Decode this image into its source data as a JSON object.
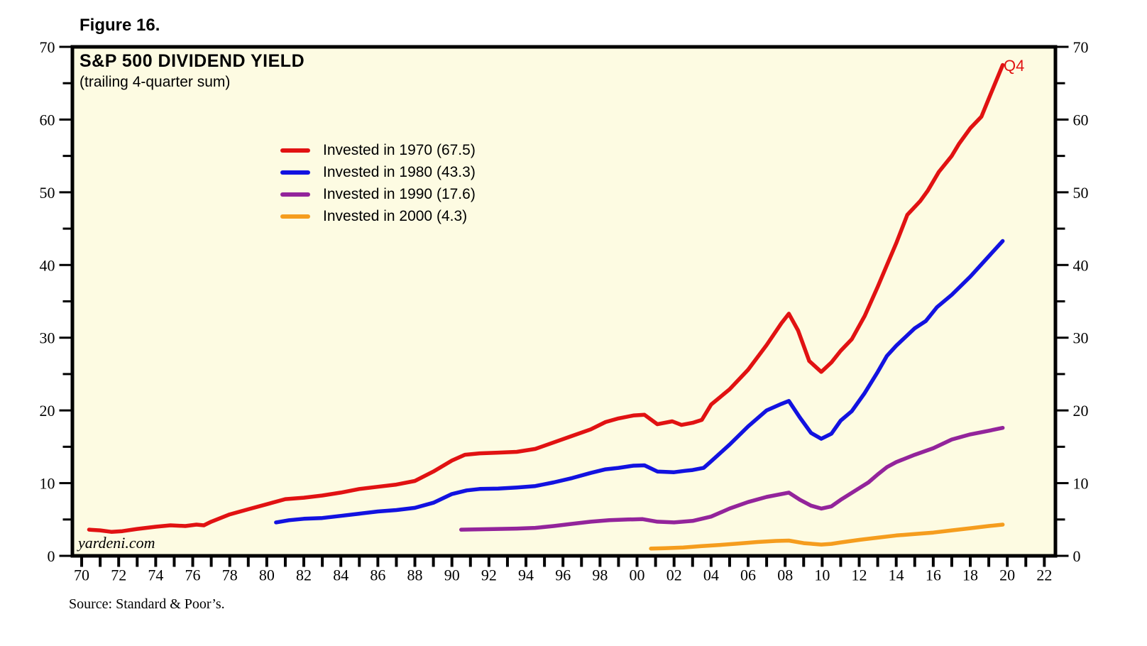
{
  "figure_label": "Figure 16.",
  "header": {
    "title": "S&P 500 DIVIDEND YIELD",
    "subtitle": "(trailing 4-quarter sum)"
  },
  "annotations": {
    "end_point_label": "Q4",
    "watermark": "yardeni.com",
    "source": "Source: Standard & Poor’s."
  },
  "colors": {
    "plot_background": "#fdfbe2",
    "frame": "#000000",
    "red": "#e11212",
    "blue": "#1212e0",
    "purple": "#93249b",
    "orange": "#f59d1e"
  },
  "chart_data": {
    "type": "line",
    "title": "S&P 500 DIVIDEND YIELD (trailing 4-quarter sum)",
    "xlabel": "",
    "ylabel": "",
    "grid": false,
    "legend_position": "upper-left-inside",
    "x_axis": {
      "min": 1969.5,
      "max": 2022.6,
      "tick_start": 1970,
      "tick_step": 1,
      "tick_end": 2022,
      "label_start": 1970,
      "label_step": 2,
      "tick_labels": [
        "70",
        "72",
        "74",
        "76",
        "78",
        "80",
        "82",
        "84",
        "86",
        "88",
        "90",
        "92",
        "94",
        "96",
        "98",
        "00",
        "02",
        "04",
        "06",
        "08",
        "10",
        "12",
        "14",
        "16",
        "18",
        "20",
        "22"
      ]
    },
    "y_axis": {
      "min": 0,
      "max": 70,
      "major_step": 10,
      "minor_step": 5,
      "tick_labels": [
        "0",
        "10",
        "20",
        "30",
        "40",
        "50",
        "60",
        "70"
      ],
      "sides": [
        "left",
        "right"
      ]
    },
    "legend": [
      {
        "label": "Invested in 1970 (67.5)",
        "color": "#e11212"
      },
      {
        "label": "Invested in 1980 (43.3)",
        "color": "#1212e0"
      },
      {
        "label": "Invested in 1990 (17.6)",
        "color": "#93249b"
      },
      {
        "label": "Invested in 2000 (4.3)",
        "color": "#f59d1e"
      }
    ],
    "series": [
      {
        "name": "Invested in 1970",
        "final_value": 67.5,
        "color": "#e11212",
        "points": [
          [
            1970.4,
            3.6
          ],
          [
            1971,
            3.5
          ],
          [
            1971.6,
            3.3
          ],
          [
            1972.2,
            3.4
          ],
          [
            1973,
            3.7
          ],
          [
            1974,
            4.0
          ],
          [
            1974.8,
            4.2
          ],
          [
            1975.6,
            4.1
          ],
          [
            1976.2,
            4.3
          ],
          [
            1976.6,
            4.2
          ],
          [
            1977,
            4.7
          ],
          [
            1978,
            5.7
          ],
          [
            1979,
            6.4
          ],
          [
            1980,
            7.1
          ],
          [
            1981,
            7.8
          ],
          [
            1982,
            8.0
          ],
          [
            1983,
            8.3
          ],
          [
            1984,
            8.7
          ],
          [
            1985,
            9.2
          ],
          [
            1986,
            9.5
          ],
          [
            1987,
            9.8
          ],
          [
            1988,
            10.3
          ],
          [
            1989,
            11.6
          ],
          [
            1990,
            13.1
          ],
          [
            1990.7,
            13.9
          ],
          [
            1991.5,
            14.1
          ],
          [
            1992.5,
            14.2
          ],
          [
            1993.5,
            14.3
          ],
          [
            1994.5,
            14.7
          ],
          [
            1995.5,
            15.6
          ],
          [
            1996.5,
            16.5
          ],
          [
            1997.5,
            17.4
          ],
          [
            1998.3,
            18.4
          ],
          [
            1999,
            18.9
          ],
          [
            1999.8,
            19.3
          ],
          [
            2000.4,
            19.4
          ],
          [
            2001.1,
            18.1
          ],
          [
            2001.9,
            18.5
          ],
          [
            2002.4,
            18.0
          ],
          [
            2003,
            18.3
          ],
          [
            2003.5,
            18.7
          ],
          [
            2004,
            20.8
          ],
          [
            2005,
            22.9
          ],
          [
            2006,
            25.6
          ],
          [
            2007,
            29.0
          ],
          [
            2007.8,
            32.0
          ],
          [
            2008.2,
            33.3
          ],
          [
            2008.7,
            31.0
          ],
          [
            2009.3,
            26.8
          ],
          [
            2009.95,
            25.3
          ],
          [
            2010.5,
            26.6
          ],
          [
            2011,
            28.2
          ],
          [
            2011.6,
            29.8
          ],
          [
            2012.3,
            33.0
          ],
          [
            2013,
            37.0
          ],
          [
            2013.5,
            40.0
          ],
          [
            2014,
            43.0
          ],
          [
            2014.6,
            46.9
          ],
          [
            2015.3,
            48.8
          ],
          [
            2015.7,
            50.2
          ],
          [
            2016.3,
            52.8
          ],
          [
            2017,
            55.0
          ],
          [
            2017.4,
            56.7
          ],
          [
            2018,
            58.8
          ],
          [
            2018.6,
            60.4
          ],
          [
            2019.1,
            63.5
          ],
          [
            2019.75,
            67.5
          ]
        ]
      },
      {
        "name": "Invested in 1980",
        "final_value": 43.3,
        "color": "#1212e0",
        "points": [
          [
            1980.5,
            4.6
          ],
          [
            1981.2,
            4.9
          ],
          [
            1982,
            5.1
          ],
          [
            1983,
            5.2
          ],
          [
            1984,
            5.5
          ],
          [
            1985,
            5.8
          ],
          [
            1986,
            6.1
          ],
          [
            1987,
            6.3
          ],
          [
            1988,
            6.6
          ],
          [
            1989,
            7.3
          ],
          [
            1990,
            8.5
          ],
          [
            1990.8,
            9.0
          ],
          [
            1991.5,
            9.2
          ],
          [
            1992.5,
            9.25
          ],
          [
            1993.5,
            9.4
          ],
          [
            1994.5,
            9.6
          ],
          [
            1995.5,
            10.1
          ],
          [
            1996.5,
            10.7
          ],
          [
            1997.5,
            11.4
          ],
          [
            1998.3,
            11.9
          ],
          [
            1999,
            12.1
          ],
          [
            1999.8,
            12.4
          ],
          [
            2000.4,
            12.45
          ],
          [
            2001.1,
            11.6
          ],
          [
            2002,
            11.5
          ],
          [
            2002.6,
            11.7
          ],
          [
            2003,
            11.8
          ],
          [
            2003.6,
            12.1
          ],
          [
            2004,
            13.0
          ],
          [
            2005,
            15.3
          ],
          [
            2006,
            17.8
          ],
          [
            2007,
            20.0
          ],
          [
            2007.8,
            20.9
          ],
          [
            2008.2,
            21.3
          ],
          [
            2008.8,
            19.0
          ],
          [
            2009.4,
            16.9
          ],
          [
            2009.95,
            16.1
          ],
          [
            2010.5,
            16.8
          ],
          [
            2011,
            18.6
          ],
          [
            2011.6,
            19.9
          ],
          [
            2012.3,
            22.4
          ],
          [
            2013,
            25.3
          ],
          [
            2013.5,
            27.5
          ],
          [
            2014,
            28.9
          ],
          [
            2015,
            31.3
          ],
          [
            2015.6,
            32.3
          ],
          [
            2016.2,
            34.2
          ],
          [
            2017,
            35.9
          ],
          [
            2018,
            38.4
          ],
          [
            2019,
            41.2
          ],
          [
            2019.75,
            43.3
          ]
        ]
      },
      {
        "name": "Invested in 1990",
        "final_value": 17.6,
        "color": "#93249b",
        "points": [
          [
            1990.5,
            3.6
          ],
          [
            1991.5,
            3.65
          ],
          [
            1992.5,
            3.7
          ],
          [
            1993.5,
            3.75
          ],
          [
            1994.5,
            3.85
          ],
          [
            1995.5,
            4.1
          ],
          [
            1996.5,
            4.4
          ],
          [
            1997.5,
            4.7
          ],
          [
            1998.5,
            4.9
          ],
          [
            1999.5,
            5.0
          ],
          [
            2000.3,
            5.05
          ],
          [
            2001.1,
            4.7
          ],
          [
            2002,
            4.6
          ],
          [
            2003,
            4.8
          ],
          [
            2004,
            5.4
          ],
          [
            2005,
            6.5
          ],
          [
            2006,
            7.4
          ],
          [
            2007,
            8.1
          ],
          [
            2008.2,
            8.7
          ],
          [
            2008.8,
            7.7
          ],
          [
            2009.4,
            6.9
          ],
          [
            2009.95,
            6.5
          ],
          [
            2010.5,
            6.8
          ],
          [
            2011,
            7.7
          ],
          [
            2012,
            9.3
          ],
          [
            2012.5,
            10.1
          ],
          [
            2013,
            11.2
          ],
          [
            2013.5,
            12.2
          ],
          [
            2014,
            12.9
          ],
          [
            2015,
            13.9
          ],
          [
            2016,
            14.8
          ],
          [
            2017,
            16.0
          ],
          [
            2018,
            16.7
          ],
          [
            2019,
            17.2
          ],
          [
            2019.75,
            17.6
          ]
        ]
      },
      {
        "name": "Invested in 2000",
        "final_value": 4.3,
        "color": "#f59d1e",
        "points": [
          [
            2000.75,
            1.0
          ],
          [
            2001.5,
            1.05
          ],
          [
            2002.5,
            1.15
          ],
          [
            2003.5,
            1.35
          ],
          [
            2004.5,
            1.5
          ],
          [
            2005.5,
            1.7
          ],
          [
            2006.5,
            1.9
          ],
          [
            2007.5,
            2.05
          ],
          [
            2008.2,
            2.1
          ],
          [
            2009,
            1.75
          ],
          [
            2009.95,
            1.55
          ],
          [
            2010.5,
            1.65
          ],
          [
            2011,
            1.85
          ],
          [
            2012,
            2.2
          ],
          [
            2013,
            2.5
          ],
          [
            2014,
            2.8
          ],
          [
            2015,
            3.0
          ],
          [
            2016,
            3.2
          ],
          [
            2017,
            3.5
          ],
          [
            2018,
            3.8
          ],
          [
            2019,
            4.1
          ],
          [
            2019.75,
            4.3
          ]
        ]
      }
    ]
  }
}
